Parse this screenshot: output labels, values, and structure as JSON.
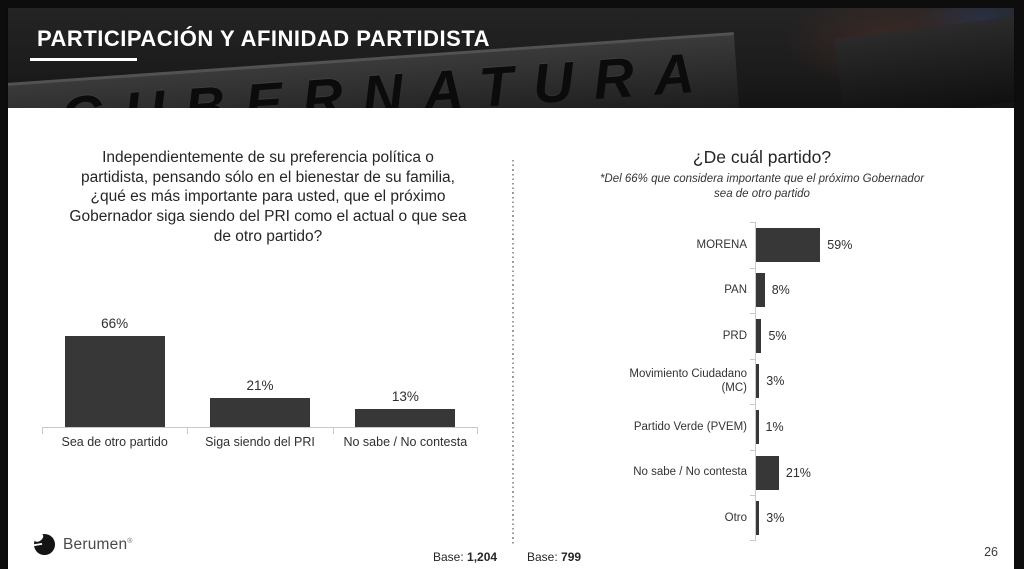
{
  "page": {
    "title": "PARTICIPACIÓN Y AFINIDAD PARTIDISTA",
    "watermark": "GUBERNATURA",
    "page_number": "26"
  },
  "left_panel": {
    "question": "Independientemente de su preferencia política o\npartidista, pensando sólo en el bienestar de su familia,\n¿qué es más importante para usted, que el próximo\nGobernador siga siendo del PRI como el actual o que sea\nde otro partido?",
    "base_label": "Base:",
    "base_value": "1,204"
  },
  "right_panel": {
    "title": "¿De cuál partido?",
    "subtitle": "*Del 66% que considera importante que el próximo Gobernador\nsea de otro partido",
    "base_label": "Base:",
    "base_value": "799"
  },
  "footer": {
    "logo_text": "Berumen",
    "logo_mark": "®"
  },
  "colors": {
    "bar": "#373737",
    "axis_line": "#c9c9c9",
    "divider_dots": "#9a9a9a",
    "header_background": "#1c1c1c",
    "title_text": "#ffffff",
    "body_text": "#262626"
  },
  "chart_data": [
    {
      "type": "bar",
      "orientation": "vertical",
      "title": "Independientemente de su preferencia política o partidista, pensando sólo en el bienestar de su familia, ¿qué es más importante para usted, que el próximo Gobernador siga siendo del PRI como el actual o que sea de otro partido?",
      "categories": [
        "Sea de otro partido",
        "Siga siendo del PRI",
        "No sabe / No contesta"
      ],
      "values": [
        66,
        21,
        13
      ],
      "value_suffix": "%",
      "ylim": [
        0,
        100
      ],
      "grid": false,
      "base": "1,204"
    },
    {
      "type": "bar",
      "orientation": "horizontal",
      "title": "¿De cuál partido?",
      "subtitle": "*Del 66% que considera importante que el próximo Gobernador sea de otro partido",
      "categories": [
        "MORENA",
        "PAN",
        "PRD",
        "Movimiento Ciudadano (MC)",
        "Partido Verde (PVEM)",
        "No sabe / No contesta",
        "Otro"
      ],
      "values": [
        59,
        8,
        5,
        3,
        1,
        21,
        3
      ],
      "value_suffix": "%",
      "xlim": [
        0,
        100
      ],
      "grid": false,
      "base": "799"
    }
  ]
}
